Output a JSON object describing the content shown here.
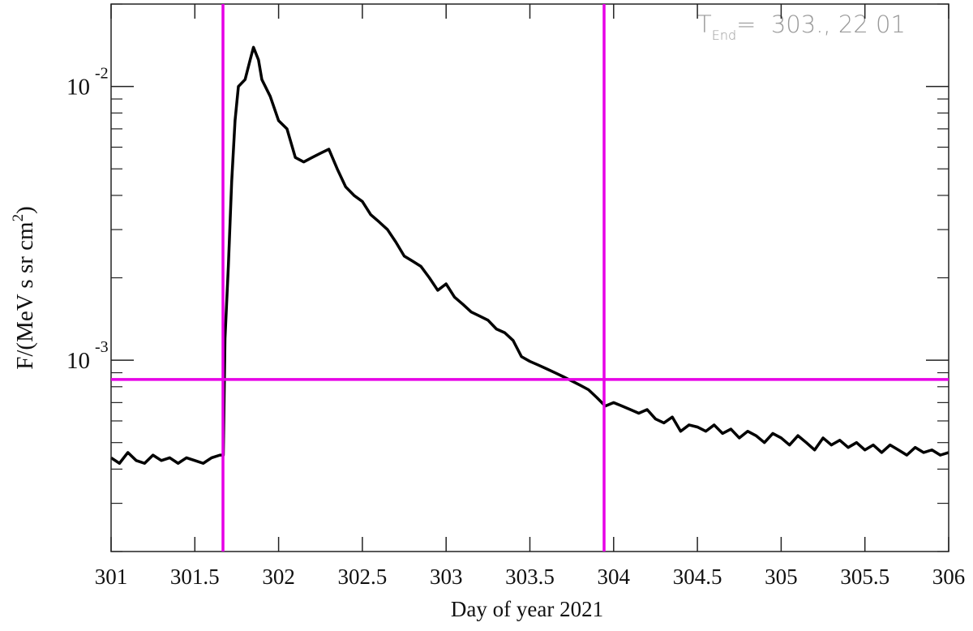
{
  "chart_data": {
    "type": "line",
    "xlabel": "Day of year 2021",
    "ylabel": {
      "text": "F/(MeV s sr cm",
      "sup": "2",
      "tail": ")"
    },
    "annotation": {
      "main": "T",
      "sub": "End",
      "rest": "=  303., 22 01"
    },
    "log_y": true,
    "xlim": [
      301,
      306
    ],
    "ylim": [
      0.0002,
      0.02
    ],
    "xticks": [
      301,
      301.5,
      302,
      302.5,
      303,
      303.5,
      304,
      304.5,
      305,
      305.5,
      306
    ],
    "yticks": [
      {
        "value": 0.001,
        "label": "10",
        "exponent": "-3"
      },
      {
        "value": 0.01,
        "label": "10",
        "exponent": "-2"
      }
    ],
    "yminorticks": [
      0.0002,
      0.0003,
      0.0004,
      0.0005,
      0.0006,
      0.0007,
      0.0008,
      0.0009,
      0.002,
      0.003,
      0.004,
      0.005,
      0.006,
      0.007,
      0.008,
      0.009,
      0.02
    ],
    "vlines": [
      301.668,
      303.943
    ],
    "hlines": [
      0.00085
    ],
    "line_color": "#e600e6",
    "series": [
      {
        "color": "#000000",
        "x": [
          301.0,
          301.05,
          301.1,
          301.15,
          301.2,
          301.25,
          301.3,
          301.35,
          301.4,
          301.45,
          301.5,
          301.55,
          301.6,
          301.65,
          301.67,
          301.68,
          301.7,
          301.72,
          301.74,
          301.76,
          301.8,
          301.83,
          301.85,
          301.88,
          301.9,
          301.95,
          302.0,
          302.05,
          302.1,
          302.15,
          302.2,
          302.25,
          302.3,
          302.35,
          302.4,
          302.45,
          302.5,
          302.55,
          302.6,
          302.65,
          302.7,
          302.75,
          302.8,
          302.85,
          302.9,
          302.95,
          303.0,
          303.05,
          303.1,
          303.15,
          303.2,
          303.25,
          303.3,
          303.35,
          303.4,
          303.45,
          303.5,
          303.55,
          303.6,
          303.65,
          303.7,
          303.75,
          303.8,
          303.85,
          303.9,
          303.95,
          304.0,
          304.05,
          304.1,
          304.15,
          304.2,
          304.25,
          304.3,
          304.35,
          304.4,
          304.45,
          304.5,
          304.55,
          304.6,
          304.65,
          304.7,
          304.75,
          304.8,
          304.85,
          304.9,
          304.95,
          305.0,
          305.05,
          305.1,
          305.15,
          305.2,
          305.25,
          305.3,
          305.35,
          305.4,
          305.45,
          305.5,
          305.55,
          305.6,
          305.65,
          305.7,
          305.75,
          305.8,
          305.85,
          305.9,
          305.95,
          306.0
        ],
        "values": [
          0.00044,
          0.00042,
          0.00046,
          0.00043,
          0.00042,
          0.00045,
          0.00043,
          0.00044,
          0.00042,
          0.00044,
          0.00043,
          0.00042,
          0.00044,
          0.00045,
          0.00045,
          0.0012,
          0.0022,
          0.0045,
          0.0075,
          0.01,
          0.0106,
          0.0125,
          0.0139,
          0.0125,
          0.0106,
          0.0092,
          0.0075,
          0.007,
          0.0055,
          0.0053,
          0.0055,
          0.0057,
          0.0059,
          0.005,
          0.0043,
          0.004,
          0.0038,
          0.0034,
          0.0032,
          0.003,
          0.0027,
          0.0024,
          0.0023,
          0.0022,
          0.002,
          0.0018,
          0.0019,
          0.0017,
          0.0016,
          0.0015,
          0.00145,
          0.0014,
          0.0013,
          0.00126,
          0.00118,
          0.00103,
          0.00099,
          0.00096,
          0.00093,
          0.0009,
          0.00087,
          0.00084,
          0.00081,
          0.00078,
          0.00073,
          0.00068,
          0.0007,
          0.00068,
          0.00066,
          0.00064,
          0.00066,
          0.00061,
          0.00059,
          0.00062,
          0.00055,
          0.00058,
          0.00057,
          0.00055,
          0.00058,
          0.00054,
          0.00056,
          0.00052,
          0.00055,
          0.00053,
          0.0005,
          0.00054,
          0.00052,
          0.00049,
          0.00053,
          0.0005,
          0.00047,
          0.00052,
          0.00049,
          0.00051,
          0.00048,
          0.0005,
          0.00047,
          0.00049,
          0.00046,
          0.00049,
          0.00047,
          0.00045,
          0.00048,
          0.00046,
          0.00047,
          0.00045,
          0.00046
        ]
      }
    ]
  }
}
